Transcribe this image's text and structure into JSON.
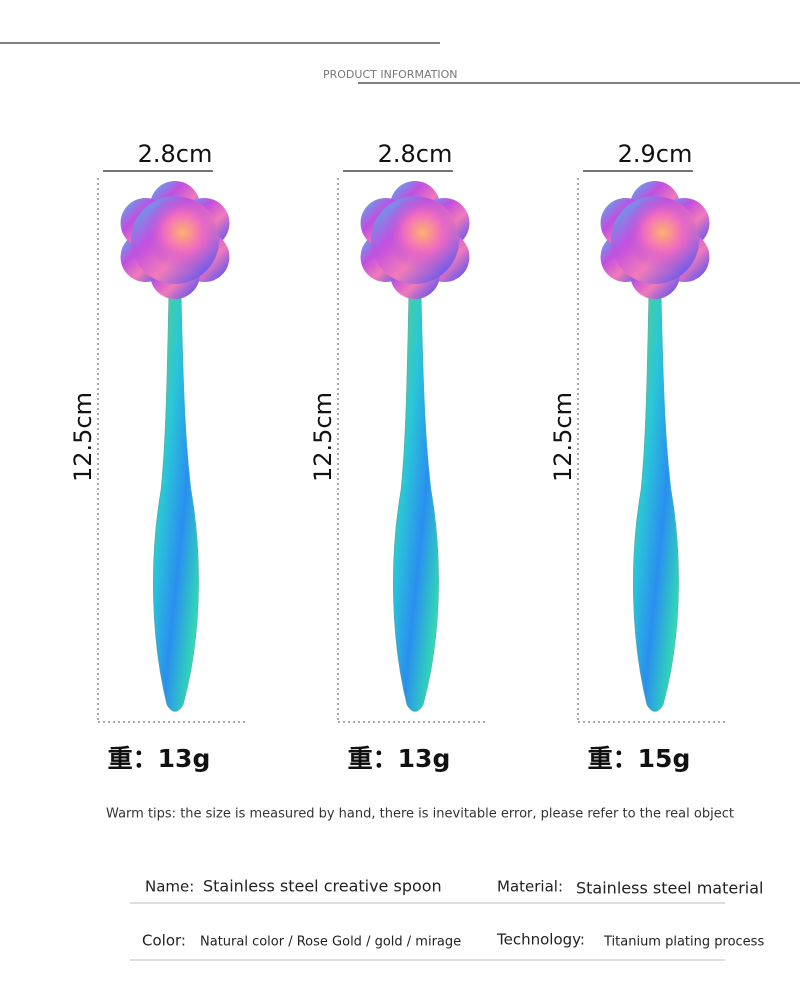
{
  "header": {
    "title": "PRODUCT INFORMATION"
  },
  "spoons": [
    {
      "width": "2.8cm",
      "length": "12.5cm",
      "weight": "重：13g"
    },
    {
      "width": "2.8cm",
      "length": "12.5cm",
      "weight": "重：13g"
    },
    {
      "width": "2.9cm",
      "length": "12.5cm",
      "weight": "重：15g"
    }
  ],
  "tips": "Warm tips: the size is measured by hand, there is inevitable error, please refer to the real object",
  "specs": [
    {
      "label": "Name:",
      "value": "Stainless steel creative spoon"
    },
    {
      "label": "Material:",
      "value": "Stainless steel material"
    },
    {
      "label": "Color:",
      "value": "Natural color / Rose Gold / gold / mirage"
    },
    {
      "label": "Technology:",
      "value": "Titanium plating process"
    }
  ]
}
